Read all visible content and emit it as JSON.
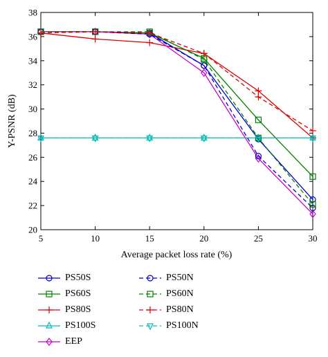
{
  "chart_data": {
    "type": "line",
    "xlabel": "Average packet loss rate (%)",
    "ylabel": "Y-PSNR (dB)",
    "x": [
      5,
      10,
      15,
      20,
      25,
      30
    ],
    "xticks": [
      "5",
      "10",
      "15",
      "20",
      "25",
      "30"
    ],
    "yticks": [
      "20",
      "22",
      "24",
      "26",
      "28",
      "30",
      "32",
      "34",
      "36",
      "38"
    ],
    "xlim": [
      5,
      30
    ],
    "ylim": [
      20,
      38
    ],
    "grid": false,
    "legend_position": "below",
    "series": [
      {
        "name": "PS50S",
        "color": "#0000cc",
        "dash": "solid",
        "marker": "circle",
        "values": [
          36.4,
          36.4,
          36.3,
          33.6,
          27.5,
          22.5
        ]
      },
      {
        "name": "PS60S",
        "color": "#008000",
        "dash": "solid",
        "marker": "square",
        "values": [
          36.4,
          36.4,
          36.3,
          34.2,
          29.1,
          24.4
        ]
      },
      {
        "name": "PS80S",
        "color": "#dd0000",
        "dash": "solid",
        "marker": "plus",
        "values": [
          36.3,
          35.8,
          35.5,
          34.6,
          31.5,
          27.6
        ]
      },
      {
        "name": "PS100S",
        "color": "#00bbbb",
        "dash": "solid",
        "marker": "triangle-up",
        "values": [
          27.6,
          27.6,
          27.6,
          27.6,
          27.6,
          27.6
        ]
      },
      {
        "name": "EEP",
        "color": "#cc00cc",
        "dash": "solid",
        "marker": "diamond",
        "values": [
          36.4,
          36.4,
          36.2,
          33.0,
          25.9,
          21.3
        ]
      },
      {
        "name": "PS50N",
        "color": "#0000cc",
        "dash": "dashed",
        "marker": "circle",
        "values": [
          36.4,
          36.4,
          36.2,
          33.6,
          26.1,
          21.8
        ]
      },
      {
        "name": "PS60N",
        "color": "#008000",
        "dash": "dashed",
        "marker": "square",
        "values": [
          36.4,
          36.4,
          36.4,
          34.1,
          27.6,
          22.1
        ]
      },
      {
        "name": "PS80N",
        "color": "#dd0000",
        "dash": "dashed",
        "marker": "plus",
        "values": [
          36.3,
          36.4,
          36.3,
          34.6,
          31.0,
          28.2
        ]
      },
      {
        "name": "PS100N",
        "color": "#00bbbb",
        "dash": "dashed",
        "marker": "triangle-down",
        "values": [
          27.6,
          27.6,
          27.6,
          27.6,
          27.6,
          27.6
        ]
      }
    ]
  }
}
